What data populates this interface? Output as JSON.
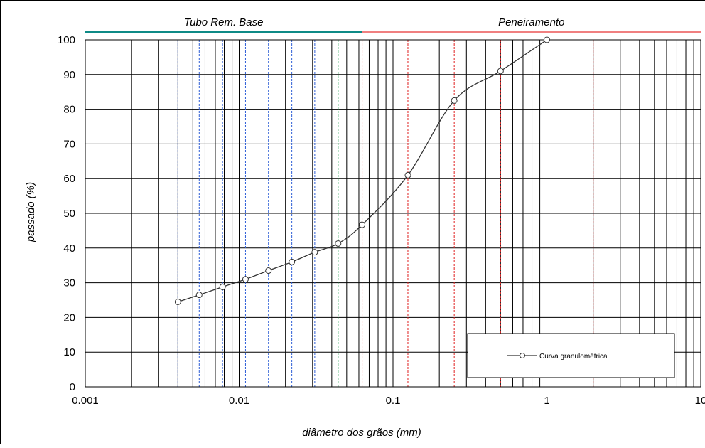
{
  "chart_data": {
    "type": "line",
    "xscale": "log",
    "xlim": [
      0.001,
      10
    ],
    "ylim": [
      0,
      100
    ],
    "xlabel": "diâmetro dos grãos  (mm)",
    "ylabel": "passado  (%)",
    "x_ticks": [
      {
        "value": 0.001,
        "label": "0.001"
      },
      {
        "value": 0.01,
        "label": "0.01"
      },
      {
        "value": 0.1,
        "label": "0.1"
      },
      {
        "value": 1,
        "label": "1"
      },
      {
        "value": 10,
        "label": "10"
      }
    ],
    "y_ticks": [
      0,
      10,
      20,
      30,
      40,
      50,
      60,
      70,
      80,
      90,
      100
    ],
    "grid": true,
    "ranges": [
      {
        "label": "Tubo Rem. Base",
        "from": 0.001,
        "to": 0.063,
        "color": "#0e8a86"
      },
      {
        "label": "Peneiramento",
        "from": 0.063,
        "to": 10,
        "color": "#f08080"
      }
    ],
    "reference_lines": [
      {
        "x": 0.004,
        "color": "#2f5fd6"
      },
      {
        "x": 0.0055,
        "color": "#2f5fd6"
      },
      {
        "x": 0.0078,
        "color": "#2f5fd6"
      },
      {
        "x": 0.011,
        "color": "#2f5fd6"
      },
      {
        "x": 0.0155,
        "color": "#2f5fd6"
      },
      {
        "x": 0.022,
        "color": "#2f5fd6"
      },
      {
        "x": 0.031,
        "color": "#2f5fd6"
      },
      {
        "x": 0.044,
        "color": "#1a9a4a"
      },
      {
        "x": 0.063,
        "color": "#e02020"
      },
      {
        "x": 0.125,
        "color": "#e02020"
      },
      {
        "x": 0.25,
        "color": "#e02020"
      },
      {
        "x": 0.5,
        "color": "#e02020"
      },
      {
        "x": 1,
        "color": "#e02020"
      },
      {
        "x": 2,
        "color": "#e02020"
      }
    ],
    "series": [
      {
        "name": "Curva granulométrica",
        "color": "#333333",
        "points": [
          {
            "x": 0.004,
            "y": 24.5
          },
          {
            "x": 0.0055,
            "y": 26.5
          },
          {
            "x": 0.0078,
            "y": 28.8
          },
          {
            "x": 0.011,
            "y": 31.0
          },
          {
            "x": 0.0155,
            "y": 33.5
          },
          {
            "x": 0.022,
            "y": 36.0
          },
          {
            "x": 0.031,
            "y": 38.8
          },
          {
            "x": 0.044,
            "y": 41.3
          },
          {
            "x": 0.063,
            "y": 46.7
          },
          {
            "x": 0.125,
            "y": 61.0
          },
          {
            "x": 0.25,
            "y": 82.5
          },
          {
            "x": 0.5,
            "y": 91.0
          },
          {
            "x": 1,
            "y": 100.0
          }
        ]
      }
    ],
    "legend": {
      "position": "bottom-right",
      "label": "Curva granulométrica"
    }
  }
}
